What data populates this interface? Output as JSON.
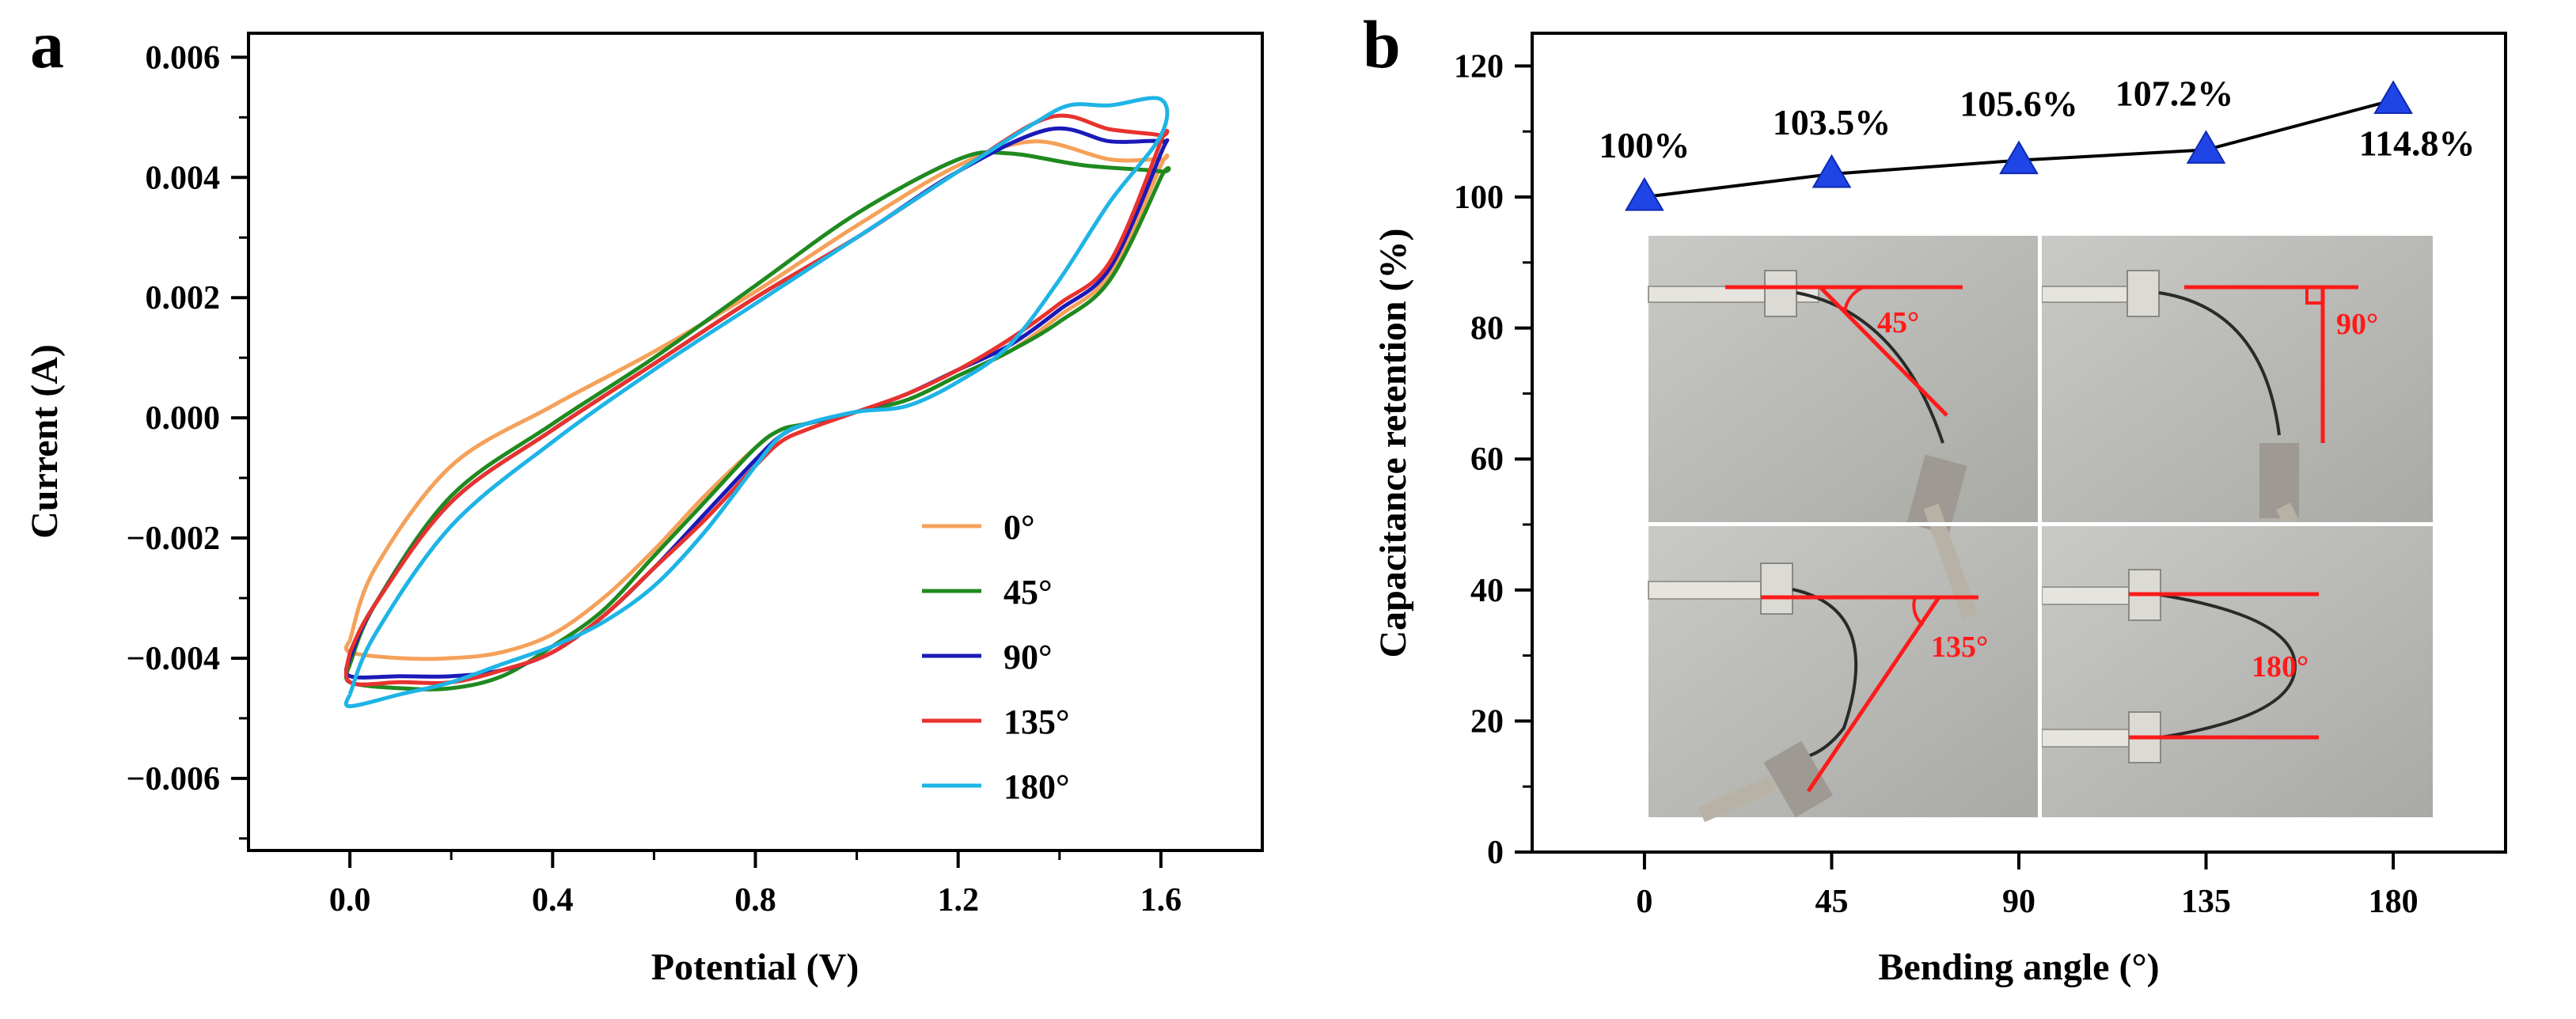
{
  "figure": {
    "panel_a_label": "a",
    "panel_b_label": "b"
  },
  "chart_data": [
    {
      "type": "line",
      "panel": "a",
      "title": "",
      "xlabel": "Potential (V)",
      "ylabel": "Current (A)",
      "xlim": [
        -0.2,
        1.8
      ],
      "ylim": [
        -0.0072,
        0.0064
      ],
      "xticks": [
        0.0,
        0.4,
        0.8,
        1.2,
        1.6
      ],
      "xtick_labels": [
        "0.0",
        "0.4",
        "0.8",
        "1.2",
        "1.6"
      ],
      "yticks": [
        -0.006,
        -0.004,
        -0.002,
        0.0,
        0.002,
        0.004,
        0.006
      ],
      "ytick_labels": [
        "−0.006",
        "−0.004",
        "−0.002",
        "0.000",
        "0.002",
        "0.004",
        "0.006"
      ],
      "legend_position": "bottom-right",
      "series": [
        {
          "name": "0°",
          "color": "#f5a15a",
          "x": [
            0.0,
            0.05,
            0.2,
            0.4,
            0.6,
            0.8,
            1.0,
            1.2,
            1.35,
            1.5,
            1.6,
            1.6,
            1.5,
            1.4,
            1.3,
            1.2,
            1.1,
            1.0,
            0.9,
            0.85,
            0.8,
            0.7,
            0.6,
            0.5,
            0.4,
            0.3,
            0.2,
            0.1,
            0.0,
            0.0
          ],
          "y": [
            -0.0037,
            -0.0025,
            -0.0008,
            0.0002,
            0.0011,
            0.0021,
            0.0032,
            0.0042,
            0.0046,
            0.0043,
            0.0043,
            0.0042,
            0.0024,
            0.0017,
            0.0011,
            0.0007,
            0.0003,
            0.0001,
            -0.0001,
            -0.0002,
            -0.0005,
            -0.0013,
            -0.0022,
            -0.003,
            -0.0036,
            -0.0039,
            -0.004,
            -0.004,
            -0.0039,
            -0.0037
          ]
        },
        {
          "name": "45°",
          "color": "#1f8a1f",
          "x": [
            0.0,
            0.05,
            0.2,
            0.4,
            0.6,
            0.8,
            1.0,
            1.2,
            1.3,
            1.45,
            1.6,
            1.6,
            1.5,
            1.4,
            1.3,
            1.2,
            1.1,
            1.0,
            0.9,
            0.85,
            0.8,
            0.7,
            0.6,
            0.5,
            0.4,
            0.3,
            0.2,
            0.1,
            0.0,
            0.0
          ],
          "y": [
            -0.0041,
            -0.0031,
            -0.0013,
            -0.0001,
            0.001,
            0.0022,
            0.0034,
            0.0043,
            0.0044,
            0.0042,
            0.0041,
            0.004,
            0.0023,
            0.0016,
            0.0011,
            0.0007,
            0.0003,
            0.0001,
            -0.0001,
            -0.0002,
            -0.0005,
            -0.0014,
            -0.0023,
            -0.0032,
            -0.0038,
            -0.0043,
            -0.0045,
            -0.0045,
            -0.0044,
            -0.0041
          ]
        },
        {
          "name": "90°",
          "color": "#1a1ab8",
          "x": [
            0.0,
            0.05,
            0.2,
            0.4,
            0.6,
            0.8,
            1.0,
            1.2,
            1.38,
            1.5,
            1.6,
            1.6,
            1.5,
            1.4,
            1.3,
            1.2,
            1.1,
            1.0,
            0.9,
            0.85,
            0.8,
            0.7,
            0.6,
            0.5,
            0.4,
            0.3,
            0.2,
            0.1,
            0.0,
            0.0
          ],
          "y": [
            -0.004,
            -0.0031,
            -0.0014,
            -0.0002,
            0.0009,
            0.002,
            0.003,
            0.0041,
            0.0048,
            0.0046,
            0.0046,
            0.0044,
            0.0025,
            0.0018,
            0.0012,
            0.0008,
            0.0004,
            0.0001,
            -0.0001,
            -0.0003,
            -0.0007,
            -0.0016,
            -0.0025,
            -0.0033,
            -0.0039,
            -0.0042,
            -0.0043,
            -0.0043,
            -0.0043,
            -0.004
          ]
        },
        {
          "name": "135°",
          "color": "#e8322e",
          "x": [
            0.0,
            0.05,
            0.2,
            0.4,
            0.6,
            0.8,
            1.0,
            1.2,
            1.38,
            1.5,
            1.6,
            1.6,
            1.5,
            1.4,
            1.3,
            1.2,
            1.1,
            1.0,
            0.9,
            0.85,
            0.8,
            0.7,
            0.6,
            0.5,
            0.4,
            0.3,
            0.2,
            0.1,
            0.0,
            0.0
          ],
          "y": [
            -0.0039,
            -0.0031,
            -0.0014,
            -0.0002,
            0.0009,
            0.002,
            0.003,
            0.0041,
            0.005,
            0.0048,
            0.0047,
            0.0046,
            0.0026,
            0.0019,
            0.0013,
            0.0008,
            0.0004,
            0.0001,
            -0.0002,
            -0.0004,
            -0.0008,
            -0.0017,
            -0.0025,
            -0.0033,
            -0.0039,
            -0.0042,
            -0.0044,
            -0.0044,
            -0.0044,
            -0.0039
          ]
        },
        {
          "name": "180°",
          "color": "#1eb4e6",
          "x": [
            0.0,
            0.05,
            0.2,
            0.4,
            0.6,
            0.8,
            1.0,
            1.2,
            1.35,
            1.42,
            1.5,
            1.6,
            1.6,
            1.5,
            1.4,
            1.3,
            1.2,
            1.1,
            1.0,
            0.9,
            0.85,
            0.8,
            0.7,
            0.6,
            0.5,
            0.4,
            0.3,
            0.2,
            0.1,
            0.0,
            0.0
          ],
          "y": [
            -0.0046,
            -0.0036,
            -0.0018,
            -0.0004,
            0.0008,
            0.0019,
            0.003,
            0.0041,
            0.0049,
            0.0052,
            0.0052,
            0.0053,
            0.0047,
            0.0036,
            0.0023,
            0.0012,
            0.0006,
            0.0002,
            0.0001,
            -0.0001,
            -0.0003,
            -0.0008,
            -0.0019,
            -0.0028,
            -0.0034,
            -0.0038,
            -0.0041,
            -0.0044,
            -0.0046,
            -0.0048,
            -0.0046
          ]
        }
      ]
    },
    {
      "type": "line",
      "panel": "b",
      "title": "",
      "xlabel": "Bending angle (°)",
      "ylabel": "Capacitance retention (%)",
      "xlim": [
        -27,
        207
      ],
      "ylim": [
        0,
        125
      ],
      "xticks": [
        0,
        45,
        90,
        135,
        180
      ],
      "xtick_labels": [
        "0",
        "45",
        "90",
        "135",
        "180"
      ],
      "yticks": [
        0,
        20,
        40,
        60,
        80,
        100,
        120
      ],
      "ytick_labels": [
        "0",
        "20",
        "40",
        "60",
        "80",
        "100",
        "120"
      ],
      "marker": "triangle",
      "marker_color": "#1f45e6",
      "line_color": "#000000",
      "series": [
        {
          "name": "Capacitance retention",
          "x": [
            0,
            45,
            90,
            135,
            180
          ],
          "y": [
            100,
            103.5,
            105.6,
            107.2,
            114.8
          ]
        }
      ],
      "data_labels": [
        "100%",
        "103.5%",
        "105.6%",
        "107.2%",
        "114.8%"
      ],
      "inset_photo_labels": [
        "45°",
        "90°",
        "135°",
        "180°"
      ],
      "inset_annotation_color": "#ff1a1a"
    }
  ]
}
